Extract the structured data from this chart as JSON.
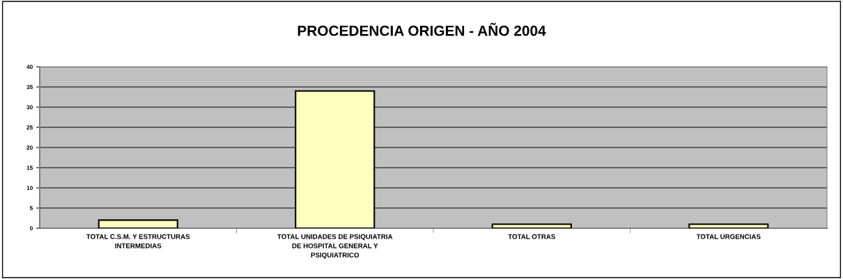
{
  "chart_data": {
    "type": "bar",
    "title": "PROCEDENCIA ORIGEN - AÑO 2004",
    "categories": [
      "TOTAL C.S.M. Y ESTRUCTURAS\nINTERMEDIAS",
      "TOTAL UNIDADES DE PSIQUIATRIA\nDE HOSPITAL GENERAL Y\nPSIQUIATRICO",
      "TOTAL OTRAS",
      "TOTAL URGENCIAS"
    ],
    "values": [
      2,
      34,
      1,
      1
    ],
    "color": "#ffffc0",
    "ylim": [
      0,
      40
    ],
    "yticks": [
      0,
      5,
      10,
      15,
      20,
      25,
      30,
      35,
      40
    ],
    "grid": "y"
  }
}
